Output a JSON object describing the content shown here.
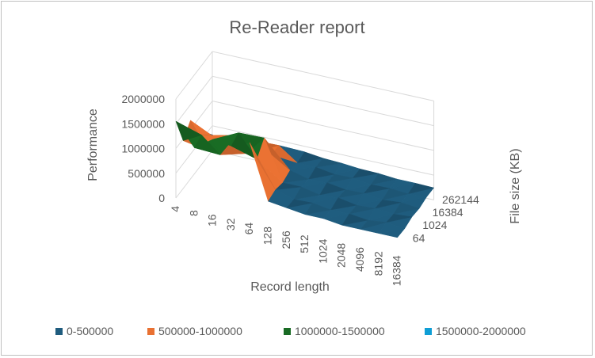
{
  "chart_data": {
    "type": "surface",
    "title": "Re-Reader report",
    "xlabel": "Record length",
    "ylabel": "File size (KB)",
    "zlabel": "Performance",
    "x_categories": [
      "4",
      "8",
      "16",
      "32",
      "64",
      "128",
      "256",
      "512",
      "1024",
      "2048",
      "4096",
      "8192",
      "16384"
    ],
    "y_tick_labels": [
      "64",
      "1024",
      "16384",
      "262144"
    ],
    "z_ticks": [
      "0",
      "500000",
      "1000000",
      "1500000",
      "2000000"
    ],
    "zlim": [
      0,
      2000000
    ],
    "legend_position": "bottom",
    "series": [
      {
        "name": "0-500000",
        "color": "#1f5c7e"
      },
      {
        "name": "500000-1000000",
        "color": "#e97132"
      },
      {
        "name": "1000000-1500000",
        "color": "#196b24"
      },
      {
        "name": "1500000-2000000",
        "color": "#0f9ed5"
      }
    ],
    "front_row_values": [
      1550000,
      1100000,
      1350000,
      1300000,
      1450000,
      350000,
      300000,
      250000,
      250000,
      200000,
      200000,
      200000,
      200000
    ],
    "back_row_values": [
      250000,
      250000,
      250000,
      300000,
      350000,
      380000,
      350000,
      320000,
      300000,
      280000,
      260000,
      250000,
      250000
    ]
  }
}
